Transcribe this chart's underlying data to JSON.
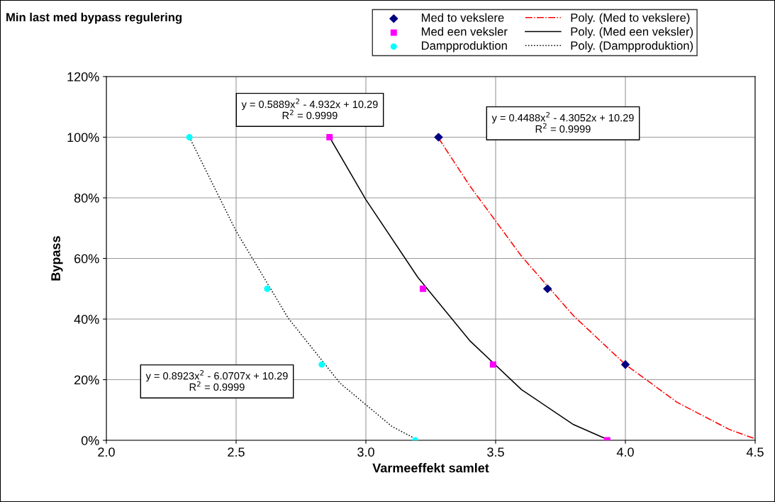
{
  "chart_data": {
    "type": "scatter",
    "title": "Min last med bypass regulering",
    "xlabel": "Varmeeffekt samlet",
    "ylabel": "Bypass",
    "xlim": [
      2.0,
      4.5
    ],
    "xticks": [
      {
        "value": 2.0,
        "label": "2.0"
      },
      {
        "value": 2.5,
        "label": "2.5"
      },
      {
        "value": 3.0,
        "label": "3.0"
      },
      {
        "value": 3.5,
        "label": "3.5"
      },
      {
        "value": 4.0,
        "label": "4.0"
      },
      {
        "value": 4.5,
        "label": "4.5"
      }
    ],
    "ylim": [
      0,
      1.2
    ],
    "yticks": [
      {
        "value": 0,
        "label": "0%"
      },
      {
        "value": 0.2,
        "label": "20%"
      },
      {
        "value": 0.4,
        "label": "40%"
      },
      {
        "value": 0.6,
        "label": "60%"
      },
      {
        "value": 0.8,
        "label": "80%"
      },
      {
        "value": 1.0,
        "label": "100%"
      },
      {
        "value": 1.2,
        "label": "120%"
      }
    ],
    "grid": true,
    "legend": "top",
    "series": [
      {
        "name": "Med to vekslere",
        "marker": "diamond",
        "color": "#000080",
        "x": [
          3.28,
          3.7,
          4.0
        ],
        "values": [
          1.0,
          0.5,
          0.25
        ]
      },
      {
        "name": "Med een veksler",
        "marker": "square",
        "color": "#ff00ff",
        "x": [
          2.86,
          3.22,
          3.49,
          3.93
        ],
        "values": [
          1.0,
          0.5,
          0.25,
          0.0
        ]
      },
      {
        "name": "Dampproduktion",
        "marker": "circle",
        "color": "#00ffff",
        "x": [
          2.32,
          2.62,
          2.83,
          3.19
        ],
        "values": [
          1.0,
          0.5,
          0.25,
          0.0
        ]
      },
      {
        "name": "Poly. (Med to vekslere)",
        "type": "line",
        "line_style": "dashdot",
        "color": "#ff0000",
        "x": [
          3.28,
          3.4,
          3.6,
          3.8,
          4.0,
          4.2,
          4.4,
          4.5
        ],
        "values": [
          0.997,
          0.84,
          0.607,
          0.411,
          0.25,
          0.125,
          0.036,
          0.005
        ]
      },
      {
        "name": "Poly. (Med een veksler)",
        "type": "line",
        "line_style": "solid",
        "color": "#000000",
        "x": [
          2.86,
          3.0,
          3.2,
          3.4,
          3.6,
          3.8,
          3.93
        ],
        "values": [
          1.0,
          0.794,
          0.538,
          0.329,
          0.167,
          0.052,
          0.003
        ]
      },
      {
        "name": "Poly. (Dampproduktion)",
        "type": "line",
        "line_style": "dotted",
        "color": "#000000",
        "x": [
          2.32,
          2.5,
          2.7,
          2.9,
          3.1,
          3.2
        ],
        "values": [
          1.0,
          0.69,
          0.404,
          0.189,
          0.046,
          0.001
        ]
      }
    ],
    "annotations": [
      "y = 0.5889x$^{2}$ - 4.932x + 10.29\nR$^{2}$ = 0.9999",
      "y = 0.4488x$^{2}$ - 4.3052x + 10.29\nR$^{2}$ = 0.9999",
      "y = 0.8923x$^{2}$ - 6.0707x + 10.29\nR$^{2}$ = 0.9999"
    ]
  }
}
